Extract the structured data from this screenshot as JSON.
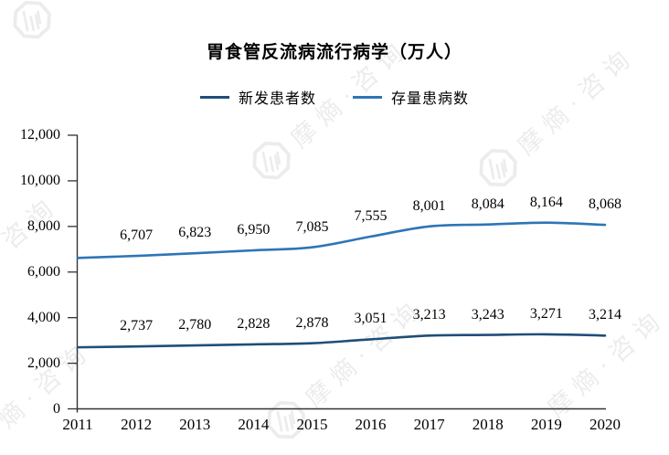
{
  "page": {
    "background": "#ffffff"
  },
  "watermark": {
    "text": "摩熵·咨询"
  },
  "chart_data": {
    "type": "line",
    "title": "胃食管反流病流行病学（万人）",
    "xlabel": "",
    "ylabel": "",
    "x_labels": [
      "2011",
      "2012",
      "2013",
      "2014",
      "2015",
      "2016",
      "2017",
      "2018",
      "2019",
      "2020"
    ],
    "y_tick_labels": [
      "0",
      "2,000",
      "4,000",
      "6,000",
      "8,000",
      "10,000",
      "12,000"
    ],
    "ylim": [
      0,
      12000
    ],
    "grid": false,
    "legend_position": "top-center",
    "axis_color": "#333333",
    "line_smoothing": true,
    "first_point_unlabeled_estimated": true,
    "series": [
      {
        "name": "新发患者数",
        "color": "#1f4e79",
        "values": [
          2700,
          2737,
          2780,
          2828,
          2878,
          3051,
          3213,
          3243,
          3271,
          3214
        ],
        "point_labels": [
          "",
          "2,737",
          "2,780",
          "2,828",
          "2,878",
          "3,051",
          "3,213",
          "3,243",
          "3,271",
          "3,214"
        ]
      },
      {
        "name": "存量患病数",
        "color": "#2e75b6",
        "values": [
          6620,
          6707,
          6823,
          6950,
          7085,
          7555,
          8001,
          8084,
          8164,
          8068
        ],
        "point_labels": [
          "",
          "6,707",
          "6,823",
          "6,950",
          "7,085",
          "7,555",
          "8,001",
          "8,084",
          "8,164",
          "8,068"
        ]
      }
    ]
  }
}
